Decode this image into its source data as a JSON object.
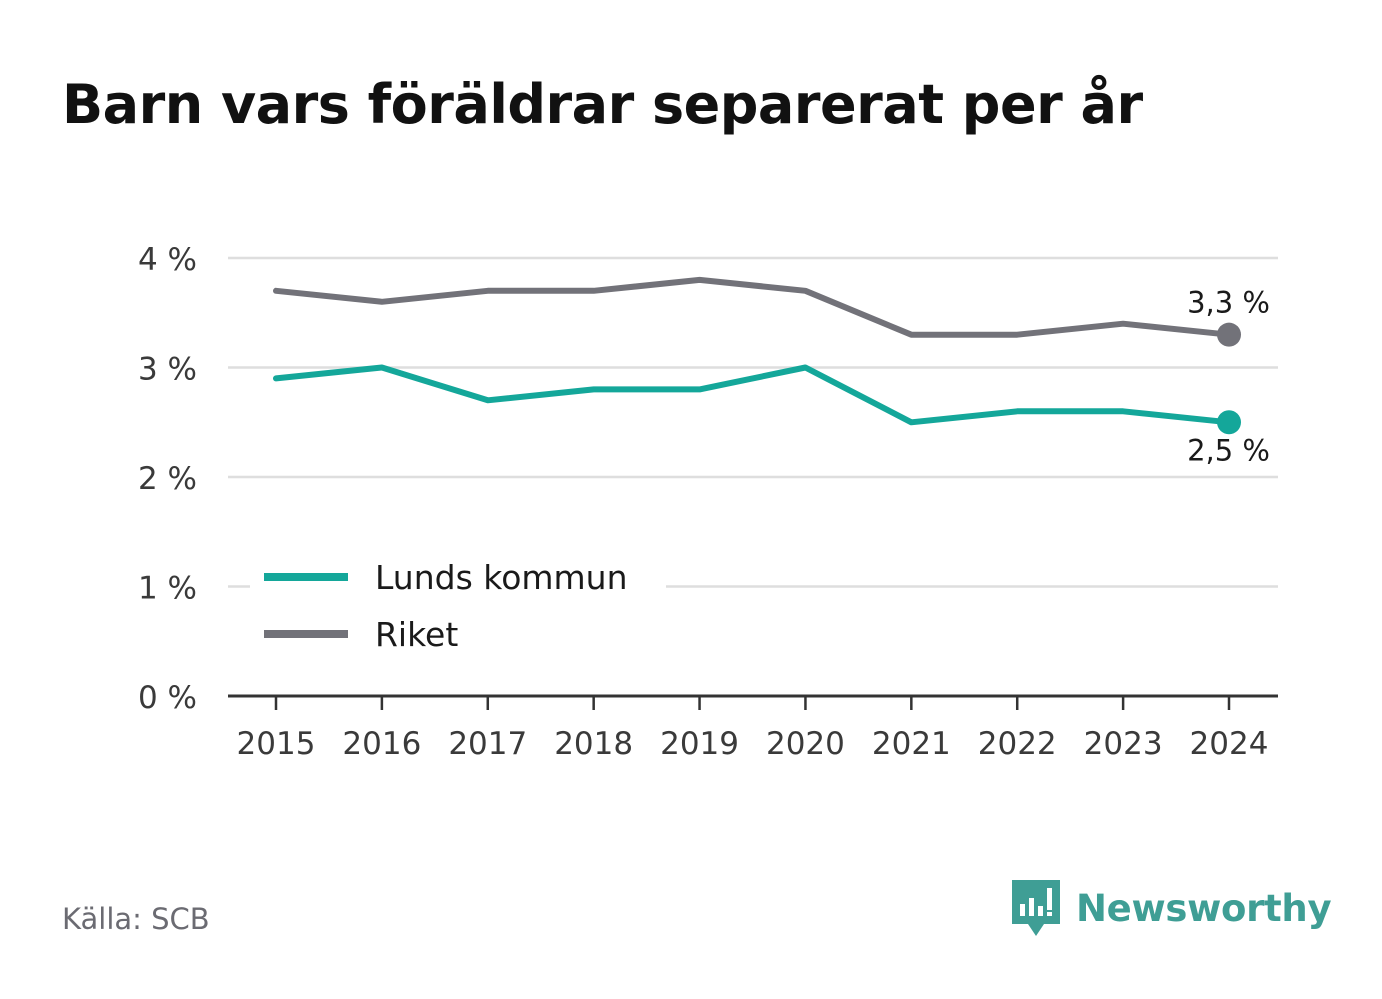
{
  "title": "Barn vars föräldrar separerat per år",
  "source": "Källa: SCB",
  "brand": {
    "name": "Newsworthy",
    "icon": "newsworthy-logo-icon"
  },
  "colors": {
    "lund": "#14a79a",
    "riket": "#727279",
    "grid": "#dedede",
    "axis": "#333333",
    "text": "#3a3a3a",
    "brand": "#3f9e95"
  },
  "chart_data": {
    "type": "line",
    "title": "Barn vars föräldrar separerat per år",
    "xlabel": "",
    "ylabel": "",
    "categories": [
      "2015",
      "2016",
      "2017",
      "2018",
      "2019",
      "2020",
      "2021",
      "2022",
      "2023",
      "2024"
    ],
    "ylim": [
      0,
      4
    ],
    "yticks": [
      0,
      1,
      2,
      3,
      4
    ],
    "ytick_labels": [
      "0 %",
      "1 %",
      "2 %",
      "3 %",
      "4 %"
    ],
    "grid": true,
    "legend_position": "bottom-left",
    "series": [
      {
        "name": "Lunds kommun",
        "color": "#14a79a",
        "values": [
          2.9,
          3.0,
          2.7,
          2.8,
          2.8,
          3.0,
          2.5,
          2.6,
          2.6,
          2.5
        ],
        "end_label": "2,5 %",
        "end_label_side": "below"
      },
      {
        "name": "Riket",
        "color": "#727279",
        "values": [
          3.7,
          3.6,
          3.7,
          3.7,
          3.8,
          3.7,
          3.3,
          3.3,
          3.4,
          3.3
        ],
        "end_label": "3,3 %",
        "end_label_side": "above"
      }
    ]
  }
}
